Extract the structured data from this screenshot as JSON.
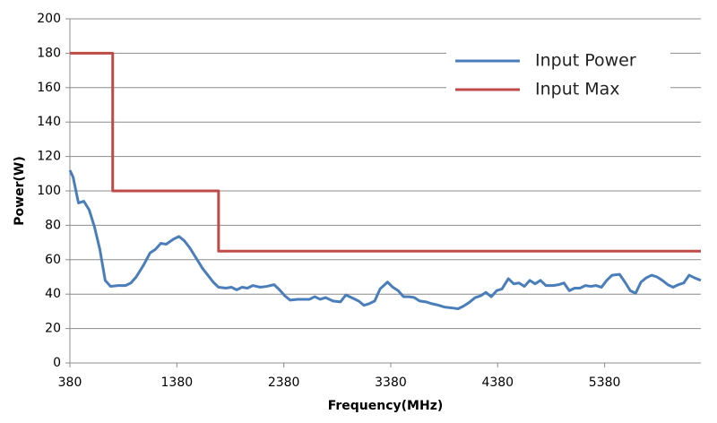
{
  "chart_data": {
    "type": "line",
    "x_label": "Frequency(MHz)",
    "y_label": "Power(W)",
    "xlim": [
      380,
      6280
    ],
    "xticks": [
      380,
      1380,
      2380,
      3380,
      4380,
      5380
    ],
    "ylim": [
      0,
      200
    ],
    "yticks": [
      0,
      20,
      40,
      60,
      80,
      100,
      120,
      140,
      160,
      180,
      200
    ],
    "grid": true,
    "legend": "upper right",
    "series": [
      {
        "name": "Input Power",
        "color": "#4a7ebb",
        "x": [
          380,
          410,
          460,
          510,
          560,
          610,
          660,
          710,
          760,
          830,
          900,
          950,
          1000,
          1070,
          1130,
          1180,
          1230,
          1280,
          1350,
          1400,
          1450,
          1500,
          1570,
          1620,
          1670,
          1720,
          1770,
          1840,
          1890,
          1940,
          1990,
          2040,
          2090,
          2160,
          2220,
          2290,
          2340,
          2390,
          2440,
          2510,
          2570,
          2620,
          2670,
          2720,
          2770,
          2840,
          2910,
          2960,
          3030,
          3080,
          3130,
          3180,
          3230,
          3280,
          3350,
          3400,
          3450,
          3500,
          3550,
          3600,
          3650,
          3710,
          3760,
          3830,
          3880,
          3950,
          4010,
          4060,
          4110,
          4170,
          4220,
          4270,
          4320,
          4370,
          4420,
          4480,
          4530,
          4580,
          4630,
          4680,
          4730,
          4780,
          4830,
          4900,
          4950,
          5000,
          5050,
          5100,
          5150,
          5200,
          5250,
          5300,
          5350,
          5400,
          5450,
          5520,
          5570,
          5620,
          5670,
          5720,
          5770,
          5820,
          5870,
          5920,
          5970,
          6020,
          6070,
          6120,
          6170,
          6220,
          6280
        ],
        "values": [
          112,
          108,
          93,
          94,
          89,
          79,
          66,
          48,
          44.5,
          45,
          45,
          46.5,
          50,
          57,
          64,
          66,
          69.5,
          69,
          72,
          73.5,
          71,
          67,
          60,
          55,
          51,
          47,
          44,
          43.5,
          44,
          42.5,
          44,
          43.5,
          45,
          44,
          44.5,
          45.5,
          42.5,
          39,
          36.5,
          37,
          37,
          37,
          38.5,
          37,
          38,
          36,
          35.5,
          39.5,
          37.5,
          36,
          33.5,
          34.5,
          36,
          43,
          47,
          44,
          42,
          38.5,
          38.5,
          38,
          36,
          35.5,
          34.5,
          33.5,
          32.5,
          32,
          31.5,
          33,
          35,
          38,
          39,
          41,
          38.5,
          42,
          43,
          49,
          46,
          46.5,
          44.5,
          48,
          46,
          48,
          45,
          45,
          45.5,
          46.5,
          42,
          43.5,
          43.5,
          45,
          44.5,
          45,
          44,
          48,
          51,
          51.5,
          47,
          42,
          40.5,
          47,
          49.5,
          51,
          50,
          48,
          45.5,
          44,
          45.5,
          46.5,
          51,
          49.5,
          48
        ]
      },
      {
        "name": "Input Max",
        "color": "#be4b48",
        "x": [
          380,
          780,
          780,
          1770,
          1770,
          6280
        ],
        "values": [
          180,
          180,
          100,
          100,
          65,
          65
        ]
      }
    ]
  }
}
